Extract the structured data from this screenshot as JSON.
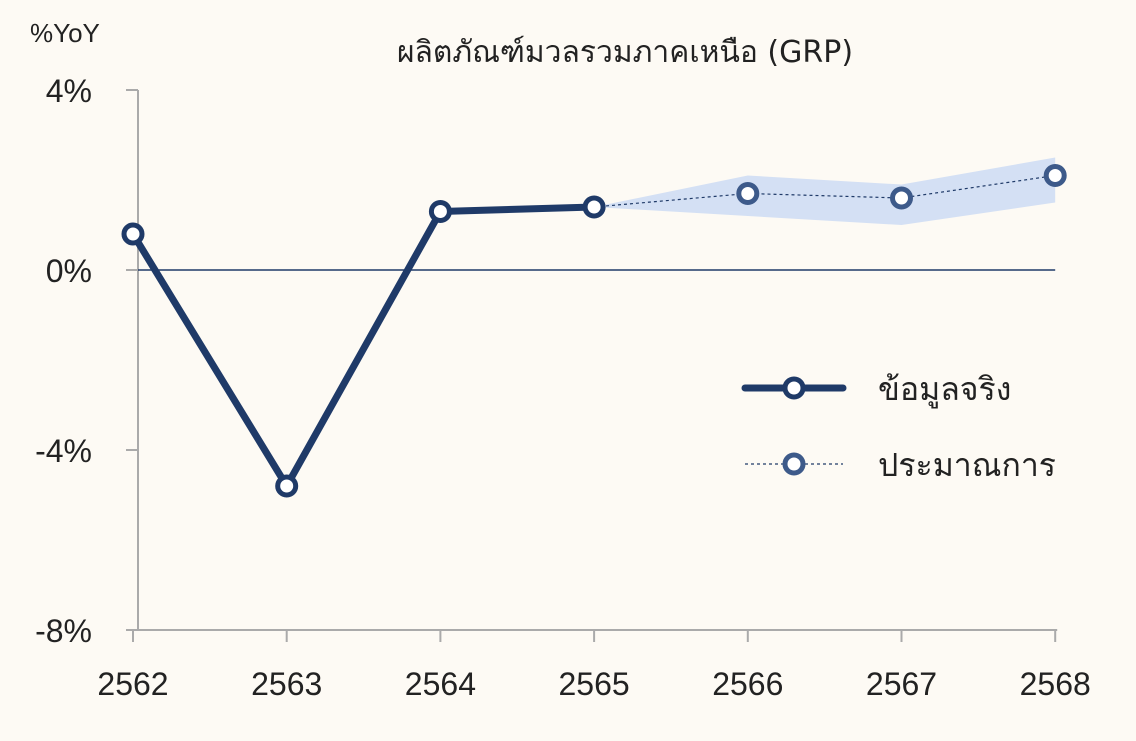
{
  "chart_data": {
    "type": "line",
    "title": "ผลิตภัณฑ์มวลรวมภาคเหนือ (GRP)",
    "ylabel": "%YoY",
    "xlabel": "",
    "categories": [
      "2562",
      "2563",
      "2564",
      "2565",
      "2566",
      "2567",
      "2568"
    ],
    "yticks": [
      "4%",
      "0%",
      "-4%",
      "-8%"
    ],
    "ytick_values": [
      4,
      0,
      -4,
      -8
    ],
    "ylim": [
      -8,
      4
    ],
    "grid": false,
    "legend_position": "right",
    "series": [
      {
        "name": "ข้อมูลจริง",
        "style": "solid",
        "color": "#1f3a68",
        "x": [
          "2562",
          "2563",
          "2564",
          "2565"
        ],
        "values": [
          0.8,
          -4.8,
          1.3,
          1.4
        ]
      },
      {
        "name": "ประมาณการ",
        "style": "dashed",
        "color": "#1f3a68",
        "x": [
          "2565",
          "2566",
          "2567",
          "2568"
        ],
        "values": [
          1.4,
          1.7,
          1.6,
          2.1
        ],
        "band_upper": [
          1.4,
          2.1,
          1.9,
          2.5
        ],
        "band_lower": [
          1.4,
          1.2,
          1.0,
          1.5
        ]
      }
    ],
    "colors": {
      "background": "#fdfaf4",
      "axis": "#aaaaaa",
      "zero_line": "#1f3a68",
      "actual": "#1f3a68",
      "forecast_marker": "#3d5a8a",
      "band": "#d4e0f4"
    }
  }
}
